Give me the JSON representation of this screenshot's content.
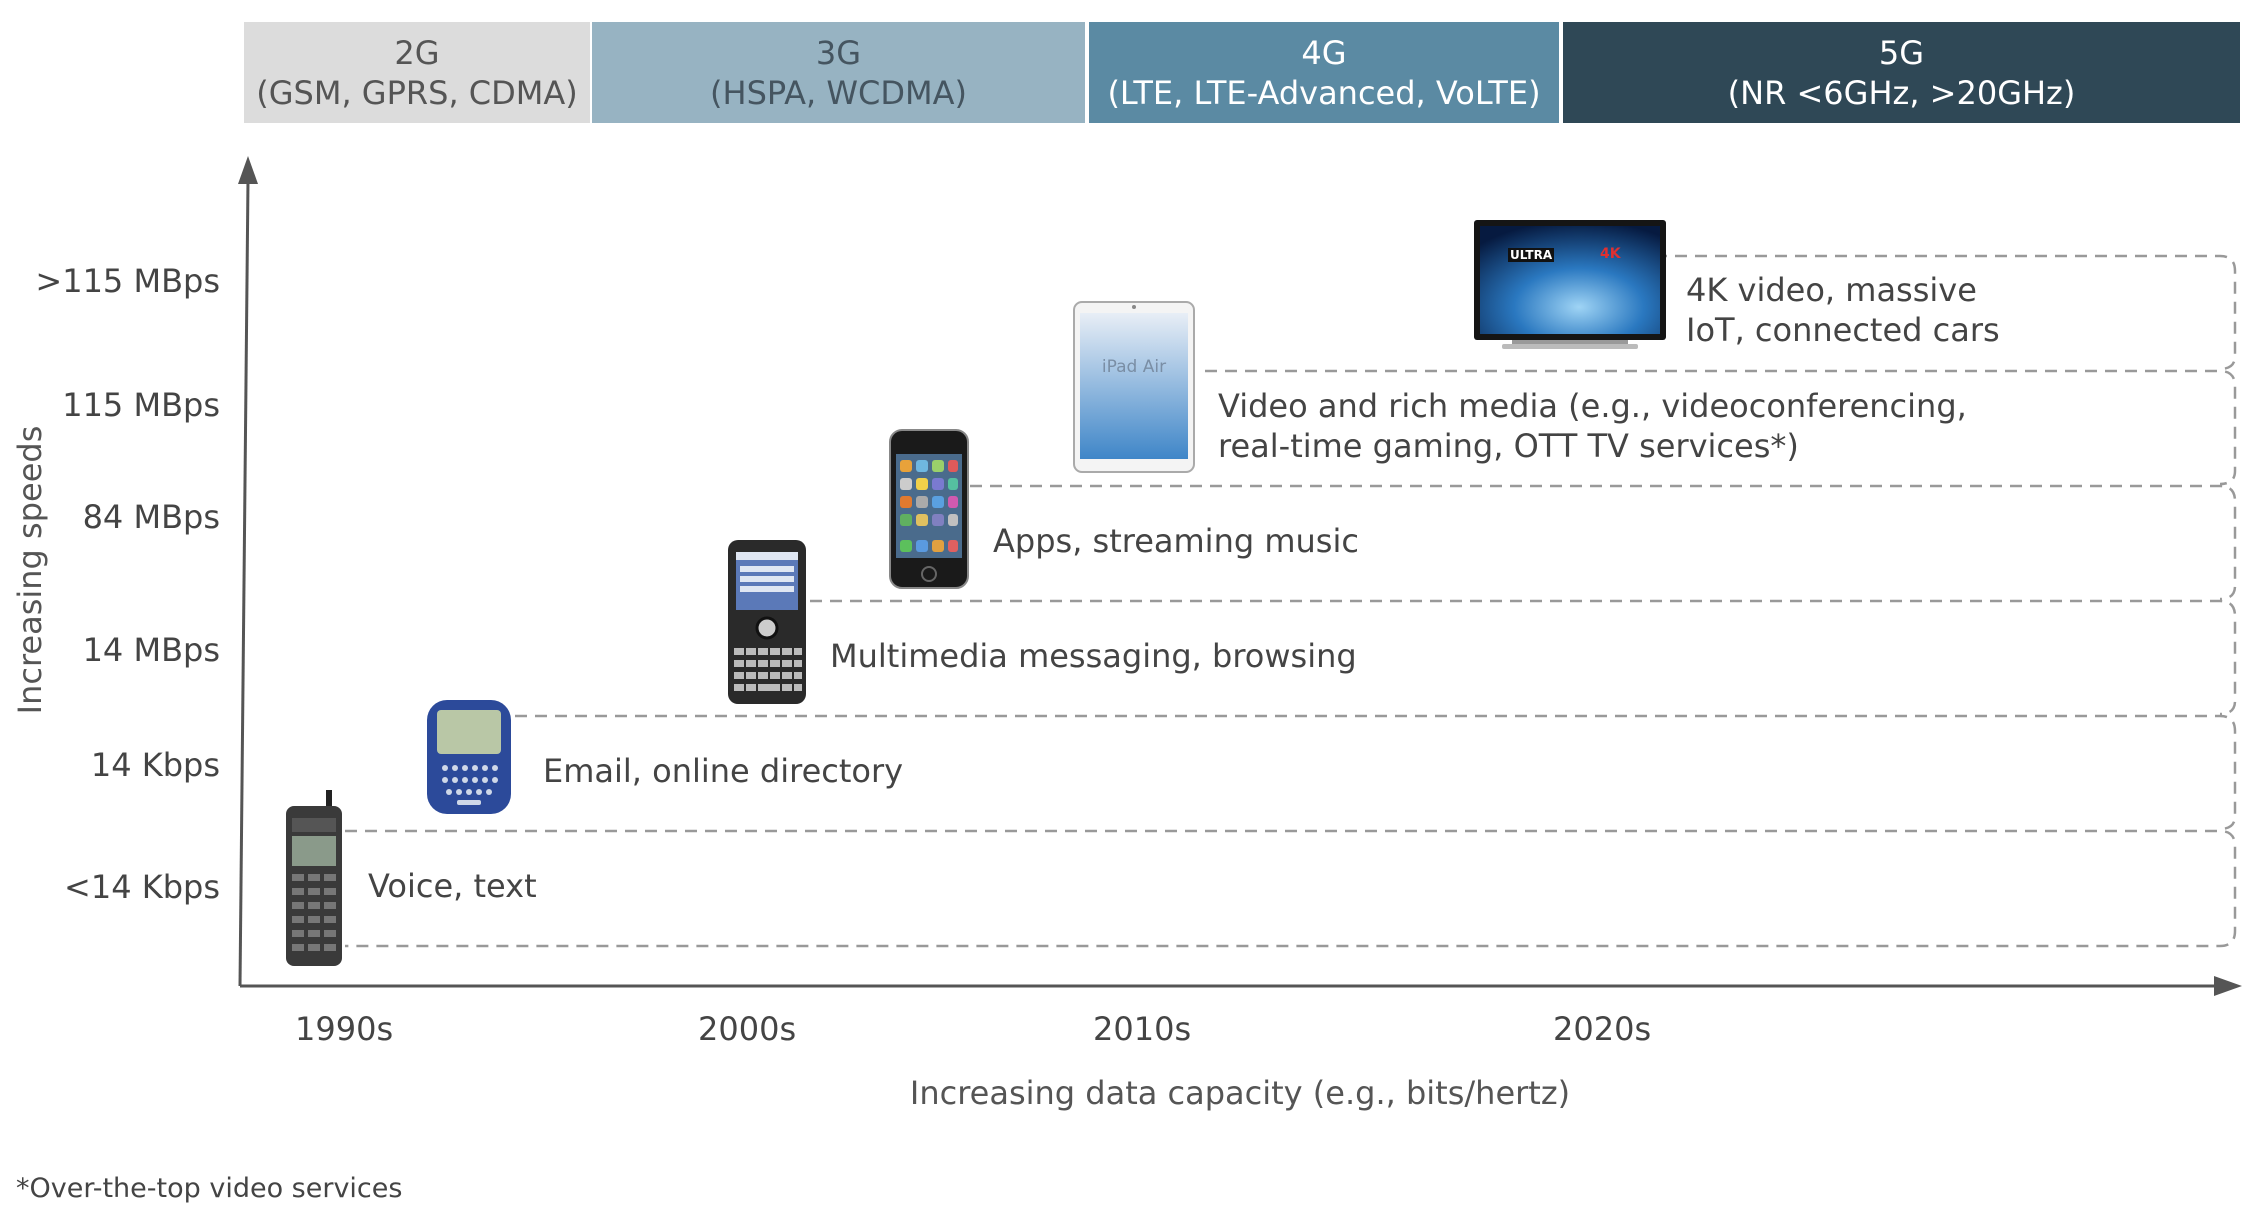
{
  "generations": [
    {
      "name": "2G",
      "tech": "(GSM, GPRS, CDMA)",
      "bg": "#dcdcdc",
      "fg": "#555555"
    },
    {
      "name": "3G",
      "tech": "(HSPA, WCDMA)",
      "bg": "#97b3c2",
      "fg": "#455560"
    },
    {
      "name": "4G",
      "tech": "(LTE, LTE-Advanced, VoLTE)",
      "bg": "#5b8aa3",
      "fg": "#ffffff"
    },
    {
      "name": "5G",
      "tech": "(NR <6GHz, >20GHz)",
      "bg": "#2f4856",
      "fg": "#ffffff"
    }
  ],
  "speeds": [
    ">115 MBps",
    "115 MBps",
    "84 MBps",
    "14 MBps",
    "14 Kbps",
    "<14 Kbps"
  ],
  "y_axis_label": "Increasing speeds",
  "x_axis_label": "Increasing data capacity (e.g., bits/hertz)",
  "decades": [
    "1990s",
    "2000s",
    "2010s",
    "2020s"
  ],
  "use_cases": [
    {
      "lines": [
        "Voice, text"
      ]
    },
    {
      "lines": [
        "Email, online directory"
      ]
    },
    {
      "lines": [
        "Multimedia messaging, browsing"
      ]
    },
    {
      "lines": [
        "Apps, streaming music"
      ]
    },
    {
      "lines": [
        "Video and rich media (e.g., videoconferencing,",
        "real-time gaming, OTT TV services*)"
      ]
    },
    {
      "lines": [
        "4K video, massive",
        "IoT, connected cars"
      ]
    }
  ],
  "devices": {
    "tv_logo_left": "ULTRA",
    "tv_logo_right": "4K",
    "tablet_label": "iPad Air"
  },
  "footnote": "*Over-the-top video services"
}
